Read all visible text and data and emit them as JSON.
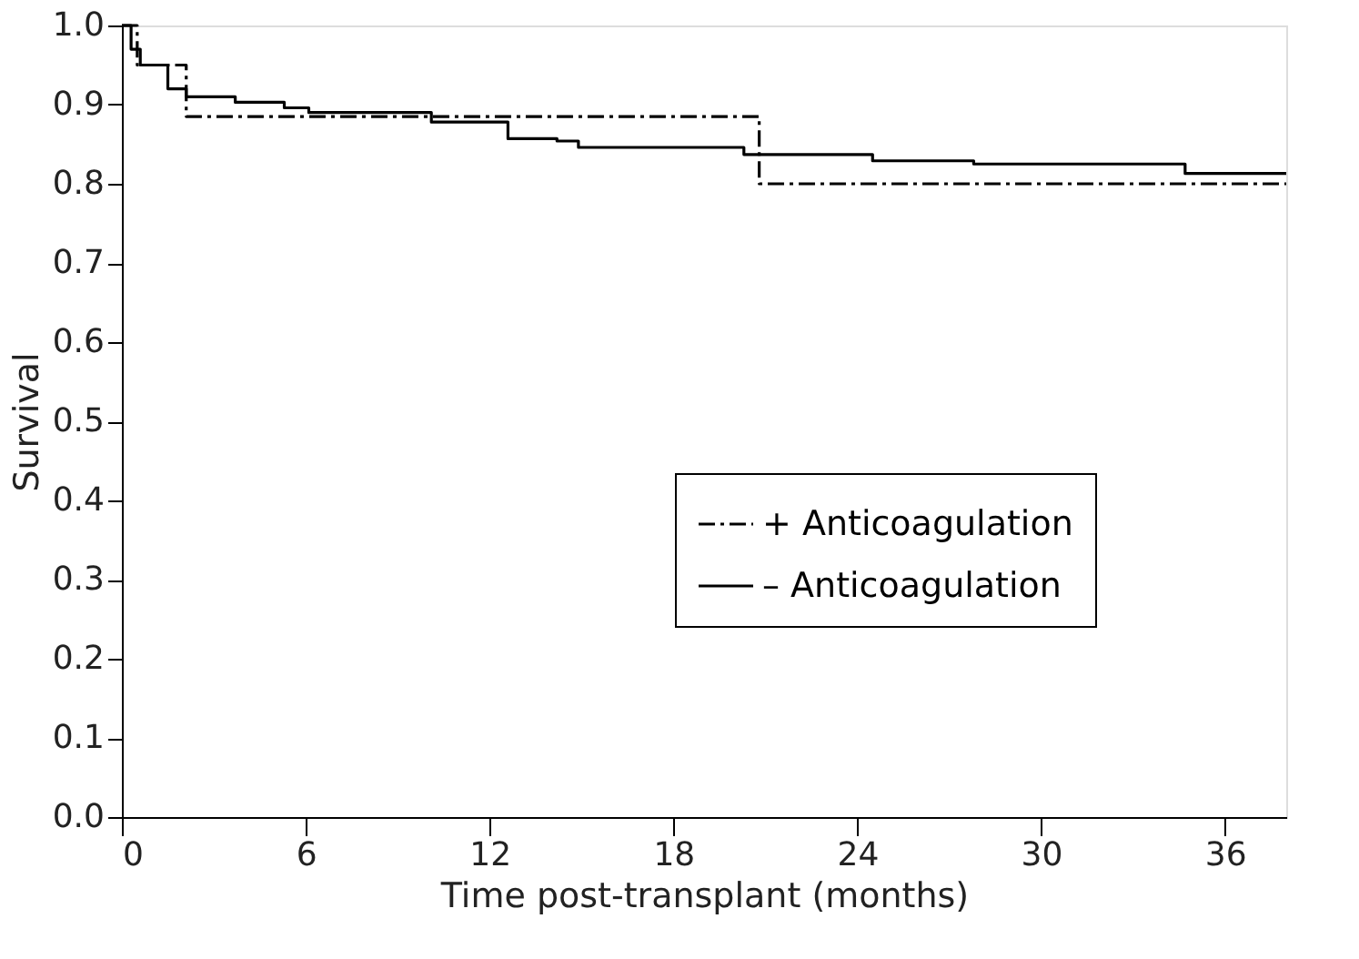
{
  "chart_data": {
    "type": "step",
    "xlabel": "Time post-transplant (months)",
    "ylabel": "Survival",
    "xlim": [
      0,
      38
    ],
    "xticks": [
      0,
      6,
      12,
      18,
      24,
      30,
      36
    ],
    "ylim": [
      0,
      1
    ],
    "yticks": [
      {
        "value": 0,
        "label": "0.0"
      },
      0.1,
      0.2,
      0.3,
      0.4,
      0.5,
      0.6,
      0.7,
      0.8,
      0.9,
      {
        "value": 1,
        "label": "1.0"
      }
    ],
    "legend": "bottom right",
    "grid": false,
    "marker": "none",
    "series": [
      {
        "name": "+ Anticoagulation",
        "color": "#000000",
        "line_style": "dashed",
        "x": [
          0,
          0.5,
          2.1,
          20.8,
          38
        ],
        "values": [
          1.0,
          0.95,
          0.885,
          0.8,
          0.8
        ]
      },
      {
        "name": "– Anticoagulation",
        "color": "#000000",
        "line_style": "solid",
        "x": [
          0,
          0.3,
          0.6,
          1.5,
          2.1,
          3.7,
          5.3,
          6.1,
          10.1,
          12.6,
          14.2,
          14.9,
          20.3,
          24.5,
          27.8,
          34.7,
          38
        ],
        "values": [
          1.0,
          0.97,
          0.95,
          0.92,
          0.91,
          0.903,
          0.896,
          0.89,
          0.878,
          0.857,
          0.854,
          0.846,
          0.837,
          0.829,
          0.825,
          0.813,
          0.813
        ]
      }
    ]
  }
}
